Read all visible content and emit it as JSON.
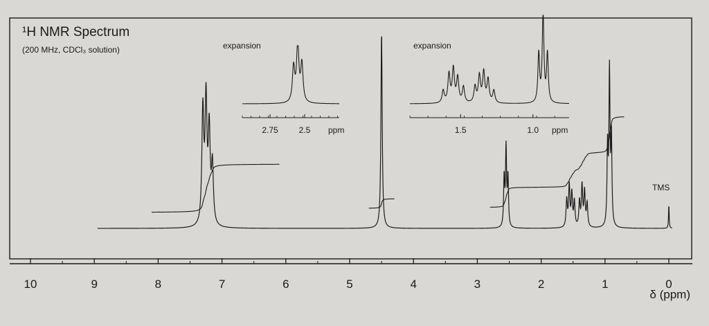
{
  "chart_data": {
    "type": "line",
    "title": "¹H NMR Spectrum",
    "subtitle": "(200 MHz, CDCl₃ solution)",
    "xlabel": "δ (ppm)",
    "xlim": [
      10,
      0
    ],
    "x_tick_labels": [
      "10",
      "9",
      "8",
      "7",
      "6",
      "5",
      "4",
      "3",
      "2",
      "1",
      "0"
    ],
    "annotations": [
      {
        "label": "TMS",
        "x": 0.0
      }
    ],
    "peaks": [
      {
        "x": 7.3,
        "height": 0.58,
        "width": 0.018
      },
      {
        "x": 7.25,
        "height": 0.62,
        "width": 0.018
      },
      {
        "x": 7.2,
        "height": 0.47,
        "width": 0.018
      },
      {
        "x": 7.15,
        "height": 0.3,
        "width": 0.018
      },
      {
        "x": 4.5,
        "height": 1.0,
        "width": 0.012
      },
      {
        "x": 2.58,
        "height": 0.25,
        "width": 0.01
      },
      {
        "x": 2.55,
        "height": 0.4,
        "width": 0.01
      },
      {
        "x": 2.52,
        "height": 0.25,
        "width": 0.01
      },
      {
        "x": 1.6,
        "height": 0.14,
        "width": 0.012
      },
      {
        "x": 1.56,
        "height": 0.21,
        "width": 0.012
      },
      {
        "x": 1.52,
        "height": 0.17,
        "width": 0.012
      },
      {
        "x": 1.48,
        "height": 0.13,
        "width": 0.012
      },
      {
        "x": 1.4,
        "height": 0.13,
        "width": 0.012
      },
      {
        "x": 1.36,
        "height": 0.21,
        "width": 0.012
      },
      {
        "x": 1.32,
        "height": 0.18,
        "width": 0.012
      },
      {
        "x": 1.28,
        "height": 0.12,
        "width": 0.012
      },
      {
        "x": 0.96,
        "height": 0.4,
        "width": 0.01
      },
      {
        "x": 0.93,
        "height": 0.78,
        "width": 0.01
      },
      {
        "x": 0.9,
        "height": 0.45,
        "width": 0.01
      },
      {
        "x": 0.0,
        "height": 0.12,
        "width": 0.006
      }
    ],
    "integration": [
      {
        "from": 8.1,
        "to": 6.1,
        "rise": 5
      },
      {
        "from": 4.7,
        "to": 4.3,
        "rise": 1
      },
      {
        "from": 2.8,
        "to": 0.7,
        "rise": 9
      }
    ],
    "insets": [
      {
        "label": "expansion",
        "x_ticks": [
          2.75,
          2.5
        ],
        "x_tick_labels": [
          "2.75",
          "2.5"
        ],
        "unit": "ppm",
        "xlim": [
          2.95,
          2.25
        ],
        "peaks": [
          {
            "x": 2.58,
            "height": 0.6,
            "width": 0.01
          },
          {
            "x": 2.55,
            "height": 1.0,
            "width": 0.01
          },
          {
            "x": 2.52,
            "height": 0.65,
            "width": 0.01
          }
        ]
      },
      {
        "label": "expansion",
        "x_ticks": [
          1.5,
          1.0
        ],
        "x_tick_labels": [
          "1.5",
          "1.0"
        ],
        "unit": "ppm",
        "xlim": [
          1.85,
          0.75
        ],
        "peaks": [
          {
            "x": 1.62,
            "height": 0.14,
            "width": 0.009
          },
          {
            "x": 1.58,
            "height": 0.32,
            "width": 0.009
          },
          {
            "x": 1.55,
            "height": 0.38,
            "width": 0.009
          },
          {
            "x": 1.52,
            "height": 0.28,
            "width": 0.009
          },
          {
            "x": 1.48,
            "height": 0.18,
            "width": 0.009
          },
          {
            "x": 1.4,
            "height": 0.18,
            "width": 0.009
          },
          {
            "x": 1.37,
            "height": 0.3,
            "width": 0.009
          },
          {
            "x": 1.34,
            "height": 0.34,
            "width": 0.009
          },
          {
            "x": 1.31,
            "height": 0.26,
            "width": 0.009
          },
          {
            "x": 1.27,
            "height": 0.14,
            "width": 0.009
          },
          {
            "x": 0.96,
            "height": 0.55,
            "width": 0.007
          },
          {
            "x": 0.93,
            "height": 1.0,
            "width": 0.007
          },
          {
            "x": 0.9,
            "height": 0.55,
            "width": 0.007
          }
        ]
      }
    ],
    "grid": false,
    "legend": "none"
  }
}
